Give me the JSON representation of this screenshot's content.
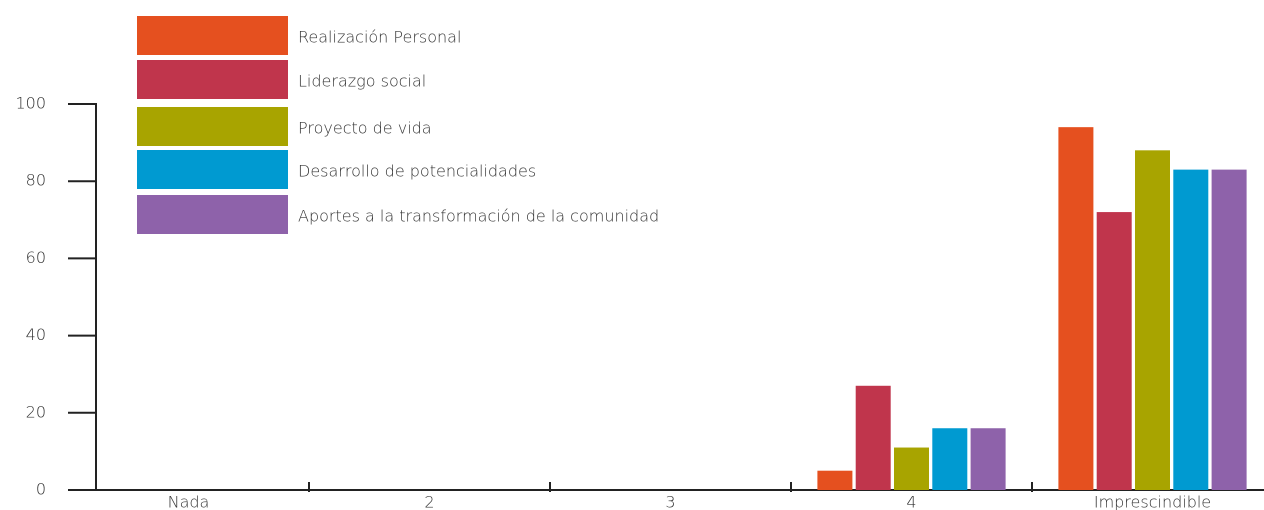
{
  "chart_data": {
    "type": "bar",
    "categories": [
      "Nada",
      "2",
      "3",
      "4",
      "Imprescindible"
    ],
    "series": [
      {
        "name": "Realización Personal",
        "color": "#e5501f",
        "values": [
          0,
          0,
          0,
          5,
          94
        ]
      },
      {
        "name": "Liderazgo social",
        "color": "#c0354c",
        "values": [
          0,
          0,
          0,
          27,
          72
        ]
      },
      {
        "name": "Proyecto de vida",
        "color": "#a8a400",
        "values": [
          0,
          0,
          0,
          11,
          88
        ]
      },
      {
        "name": "Desarrollo de potencialidades",
        "color": "#009ad1",
        "values": [
          0,
          0,
          0,
          16,
          83
        ]
      },
      {
        "name": "Aportes a la transformación de la comunidad",
        "color": "#8e62aa",
        "values": [
          0,
          0,
          0,
          16,
          83
        ]
      }
    ],
    "ylim": [
      0,
      100
    ],
    "yticks": [
      0,
      20,
      40,
      60,
      80,
      100
    ],
    "legend": "top-left"
  }
}
